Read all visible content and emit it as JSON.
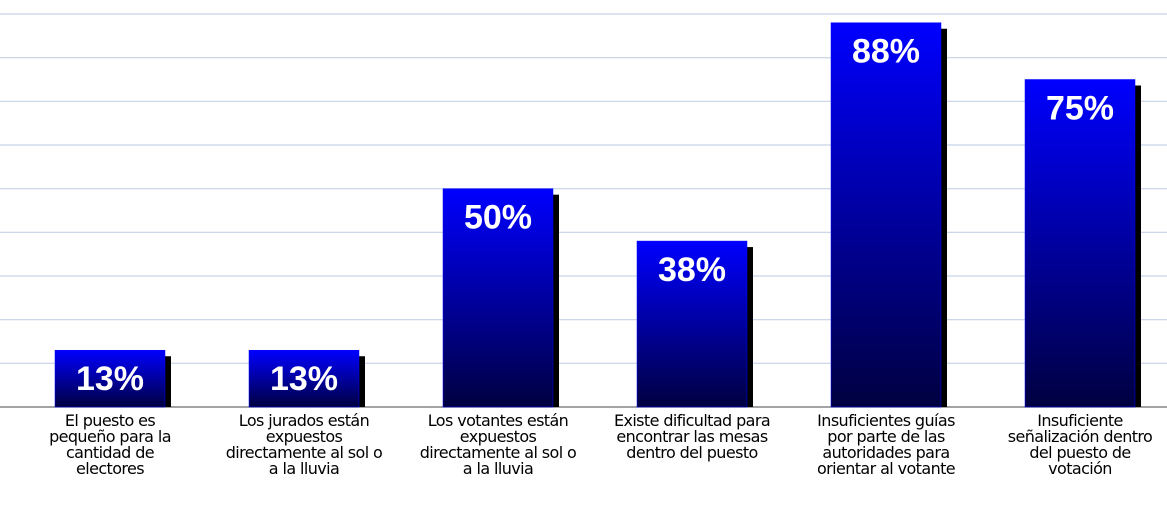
{
  "chart_data": {
    "type": "bar",
    "categories": [
      "El puesto es pequeño para la cantidad de electores",
      "Los jurados están expuestos directamente al sol o a la lluvia",
      "Los votantes están expuestos directamente al sol o a la lluvia",
      "Existe dificultad para encontrar las mesas dentro del puesto",
      "Insuficientes guías por parte de las autoridades para orientar al votante",
      "Insuficiente señalización dentro del puesto de votación"
    ],
    "values": [
      13,
      13,
      50,
      38,
      88,
      75
    ],
    "value_labels": [
      "13%",
      "13%",
      "50%",
      "38%",
      "88%",
      "75%"
    ],
    "color": "#0000ff",
    "ylim": [
      0,
      90
    ],
    "yticks": [
      0,
      10,
      20,
      30,
      40,
      50,
      60,
      70,
      80,
      90
    ],
    "grid": true
  }
}
